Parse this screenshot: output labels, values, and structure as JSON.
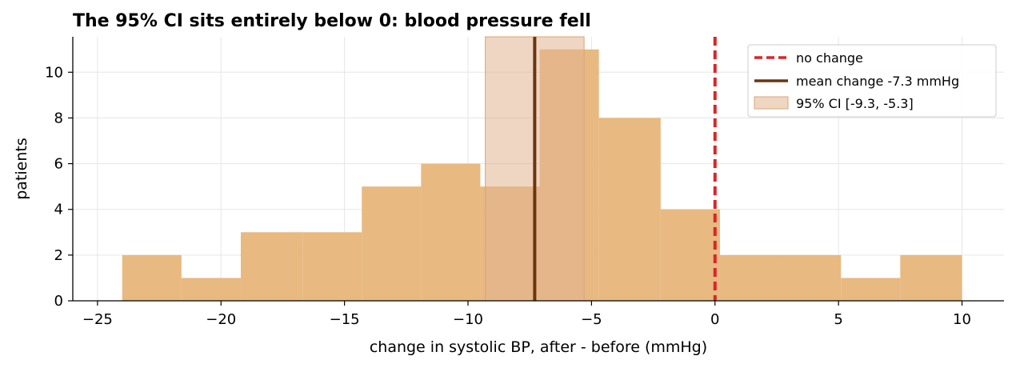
{
  "chart_data": {
    "type": "histogram",
    "title": "The 95% CI sits entirely below 0: blood pressure fell",
    "xlabel": "change in systolic BP, after - before (mmHg)",
    "ylabel": "patients",
    "xlim": [
      -26,
      11.7
    ],
    "ylim": [
      0,
      11.55
    ],
    "xticks": [
      -25,
      -20,
      -15,
      -10,
      -5,
      0,
      5,
      10
    ],
    "xtick_labels": [
      "−25",
      "−20",
      "−15",
      "−10",
      "−5",
      "0",
      "5",
      "10"
    ],
    "yticks": [
      0,
      2,
      4,
      6,
      8,
      10
    ],
    "ytick_labels": [
      "0",
      "2",
      "4",
      "6",
      "8",
      "10"
    ],
    "grid": true,
    "bins": [
      {
        "x0": -24.0,
        "x1": -21.6,
        "count": 2
      },
      {
        "x0": -21.6,
        "x1": -19.2,
        "count": 1
      },
      {
        "x0": -19.2,
        "x1": -16.7,
        "count": 3
      },
      {
        "x0": -16.7,
        "x1": -14.3,
        "count": 3
      },
      {
        "x0": -14.3,
        "x1": -11.9,
        "count": 5
      },
      {
        "x0": -11.9,
        "x1": -9.5,
        "count": 6
      },
      {
        "x0": -9.5,
        "x1": -7.1,
        "count": 5
      },
      {
        "x0": -7.1,
        "x1": -4.7,
        "count": 11
      },
      {
        "x0": -4.7,
        "x1": -2.2,
        "count": 8
      },
      {
        "x0": -2.2,
        "x1": 0.2,
        "count": 4
      },
      {
        "x0": 0.2,
        "x1": 2.6,
        "count": 2
      },
      {
        "x0": 2.6,
        "x1": 5.1,
        "count": 2
      },
      {
        "x0": 5.1,
        "x1": 7.5,
        "count": 1
      },
      {
        "x0": 7.5,
        "x1": 10.0,
        "count": 2
      }
    ],
    "reference_line": {
      "x": 0,
      "label": "no change",
      "color": "#d62728",
      "style": "dashed"
    },
    "mean_line": {
      "x": -7.3,
      "label": "mean change -7.3 mmHg",
      "color": "#6b3510"
    },
    "ci_band": {
      "low": -9.3,
      "high": -5.3,
      "label": "95% CI [-9.3, -5.3]",
      "color": "#e2b58f"
    },
    "bar_color": "#e8b980",
    "legend_position": "top-right"
  }
}
